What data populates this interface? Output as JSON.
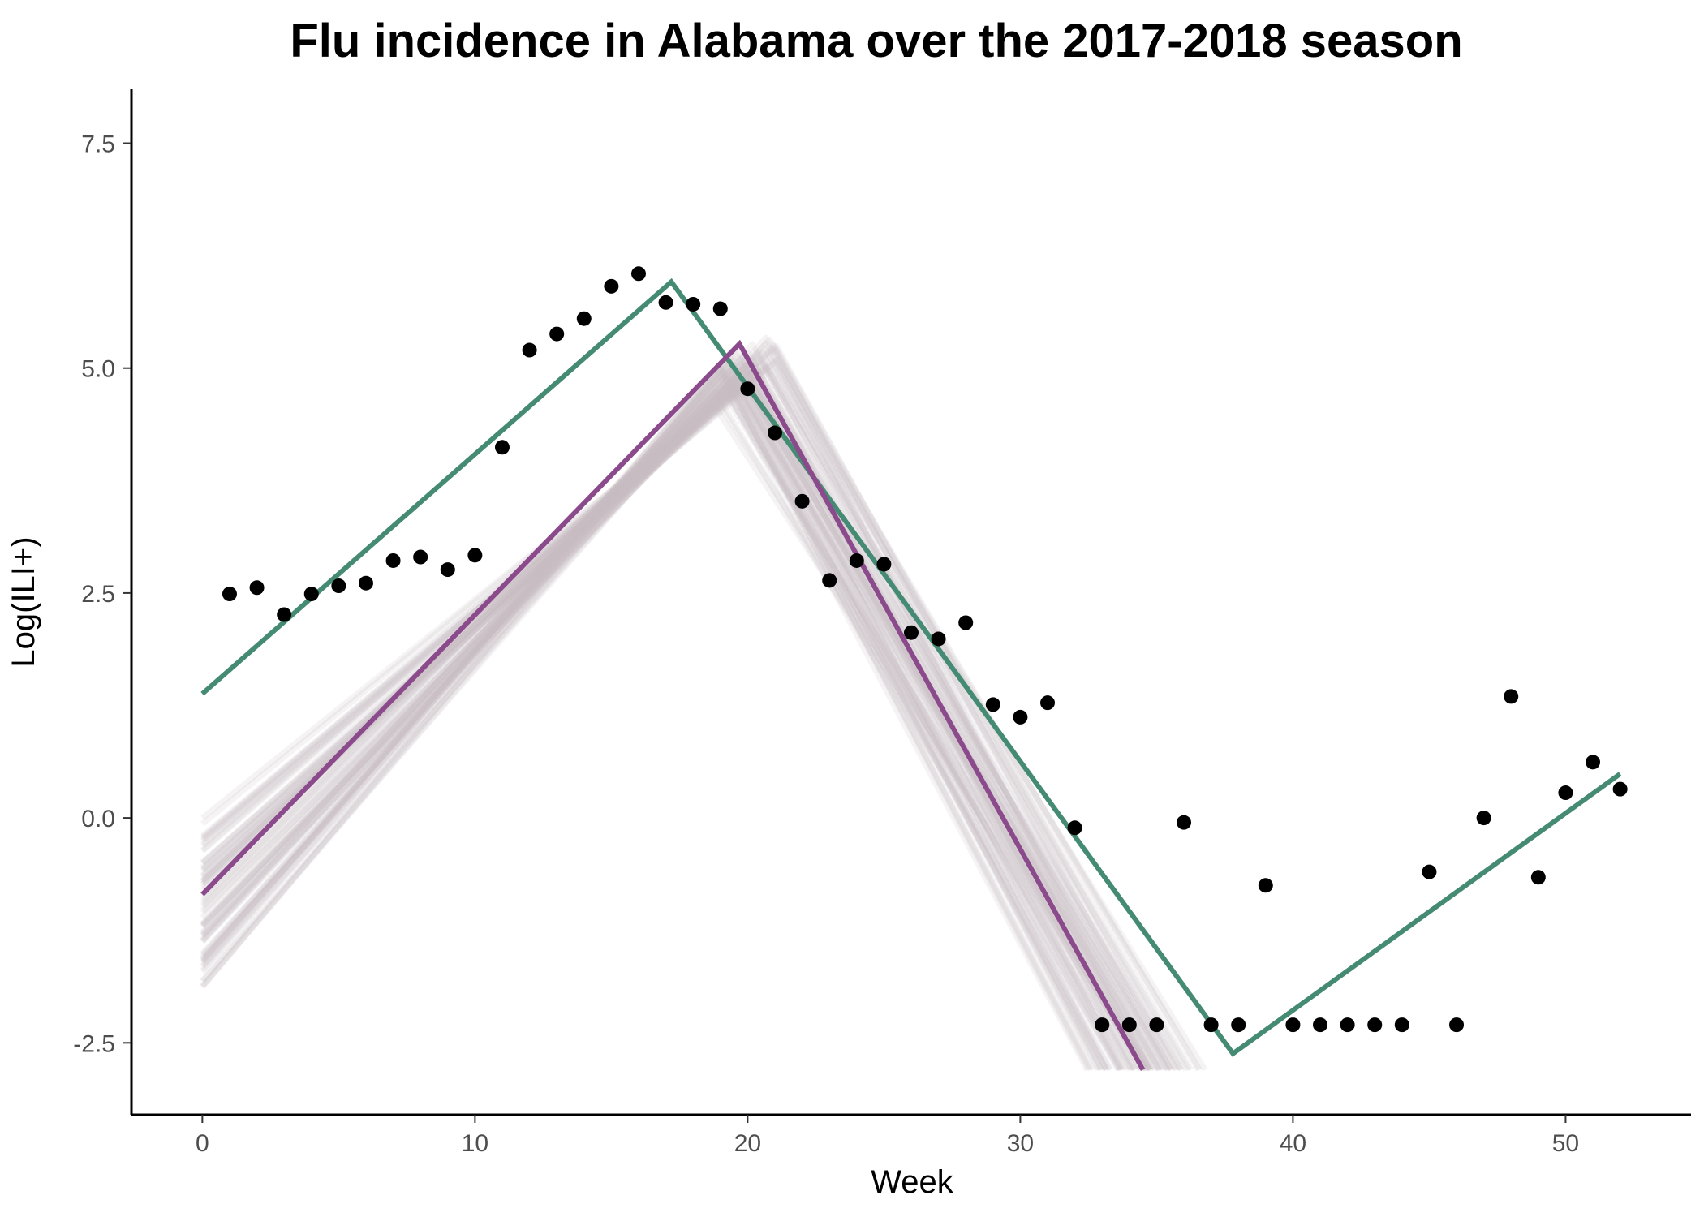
{
  "chart_data": {
    "type": "line",
    "title": "Flu incidence in Alabama over the 2017-2018 season",
    "xlabel": "Week",
    "ylabel": "Log(ILI+)",
    "xlim": [
      -2.6,
      54.6
    ],
    "ylim": [
      -3.3,
      8.1
    ],
    "x_ticks": [
      0,
      10,
      20,
      30,
      40,
      50
    ],
    "x_tick_labels": [
      "0",
      "10",
      "20",
      "30",
      "40",
      "50"
    ],
    "y_ticks": [
      -2.5,
      0,
      2.5,
      5,
      7.5
    ],
    "y_tick_labels": [
      "-2.5",
      "0.0",
      "2.5",
      "5.0",
      "7.5"
    ],
    "grid": false,
    "legend": "none",
    "colors": {
      "points": "#000000",
      "fit_line": "#458b73",
      "median_line": "#8b4a8b",
      "samples": "#c9bfc2"
    },
    "series": [
      {
        "type": "scatter",
        "x": [
          1,
          2,
          3,
          4,
          5,
          6,
          7,
          8,
          9,
          10,
          11,
          12,
          13,
          14,
          15,
          16,
          17,
          18,
          19,
          20,
          21,
          22,
          23,
          24,
          25,
          26,
          27,
          28,
          29,
          30,
          31,
          32,
          33,
          34,
          35,
          36,
          37,
          38,
          39,
          40,
          41,
          42,
          43,
          44,
          45,
          46,
          47,
          48,
          49,
          50,
          51,
          52
        ],
        "y": [
          2.49,
          2.56,
          2.26,
          2.49,
          2.58,
          2.61,
          2.86,
          2.9,
          2.76,
          2.92,
          4.12,
          5.2,
          5.38,
          5.55,
          5.91,
          6.05,
          5.73,
          5.71,
          5.66,
          4.77,
          4.28,
          3.52,
          2.64,
          2.86,
          2.82,
          2.06,
          1.99,
          2.17,
          1.26,
          1.12,
          1.28,
          -0.11,
          -2.3,
          -2.3,
          -2.3,
          -0.05,
          -2.3,
          -2.3,
          -0.75,
          -2.3,
          -2.3,
          -2.3,
          -2.3,
          -2.3,
          -0.6,
          -2.3,
          0.0,
          1.35,
          -0.66,
          0.28,
          0.62,
          0.32
        ]
      },
      {
        "type": "line",
        "x": [
          0,
          17.2,
          37.8,
          52
        ],
        "y": [
          1.38,
          5.96,
          -2.62,
          0.49
        ]
      },
      {
        "type": "line",
        "x": [
          0,
          19.7,
          34.5
        ],
        "y": [
          -0.85,
          5.27,
          -2.8
        ]
      }
    ]
  }
}
